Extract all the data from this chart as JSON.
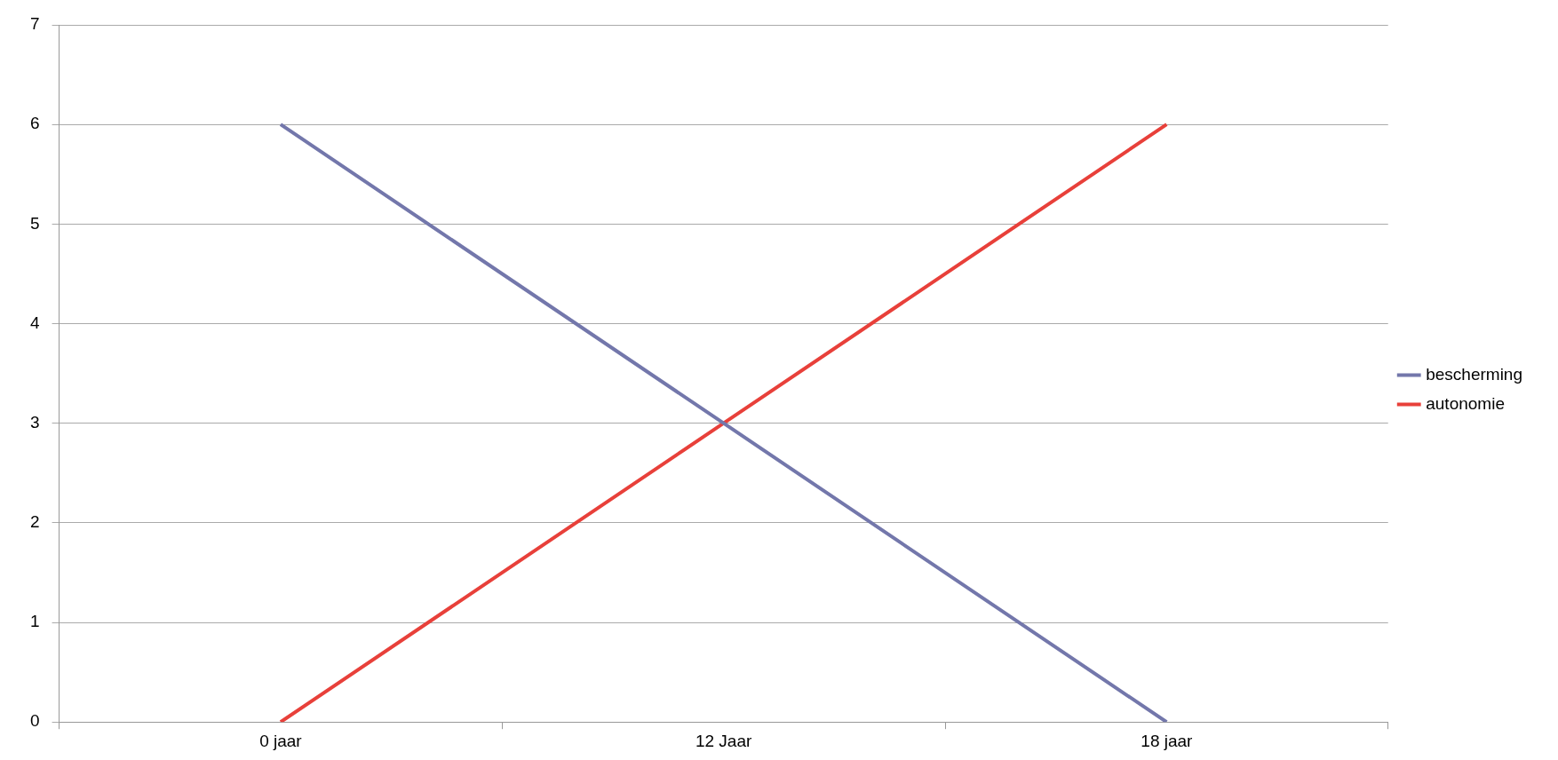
{
  "chart_data": {
    "type": "line",
    "categories": [
      "0 jaar",
      "12 Jaar",
      "18 jaar"
    ],
    "series": [
      {
        "name": "bescherming",
        "color": "#7377ab",
        "values": [
          6,
          3,
          0
        ]
      },
      {
        "name": "autonomie",
        "color": "#e8403a",
        "values": [
          0,
          3,
          6
        ]
      }
    ],
    "ylim": [
      0,
      7
    ],
    "yticks": [
      0,
      1,
      2,
      3,
      4,
      5,
      6,
      7
    ],
    "grid": "y",
    "legend": "right",
    "marker": "none",
    "line_style": "solid"
  }
}
